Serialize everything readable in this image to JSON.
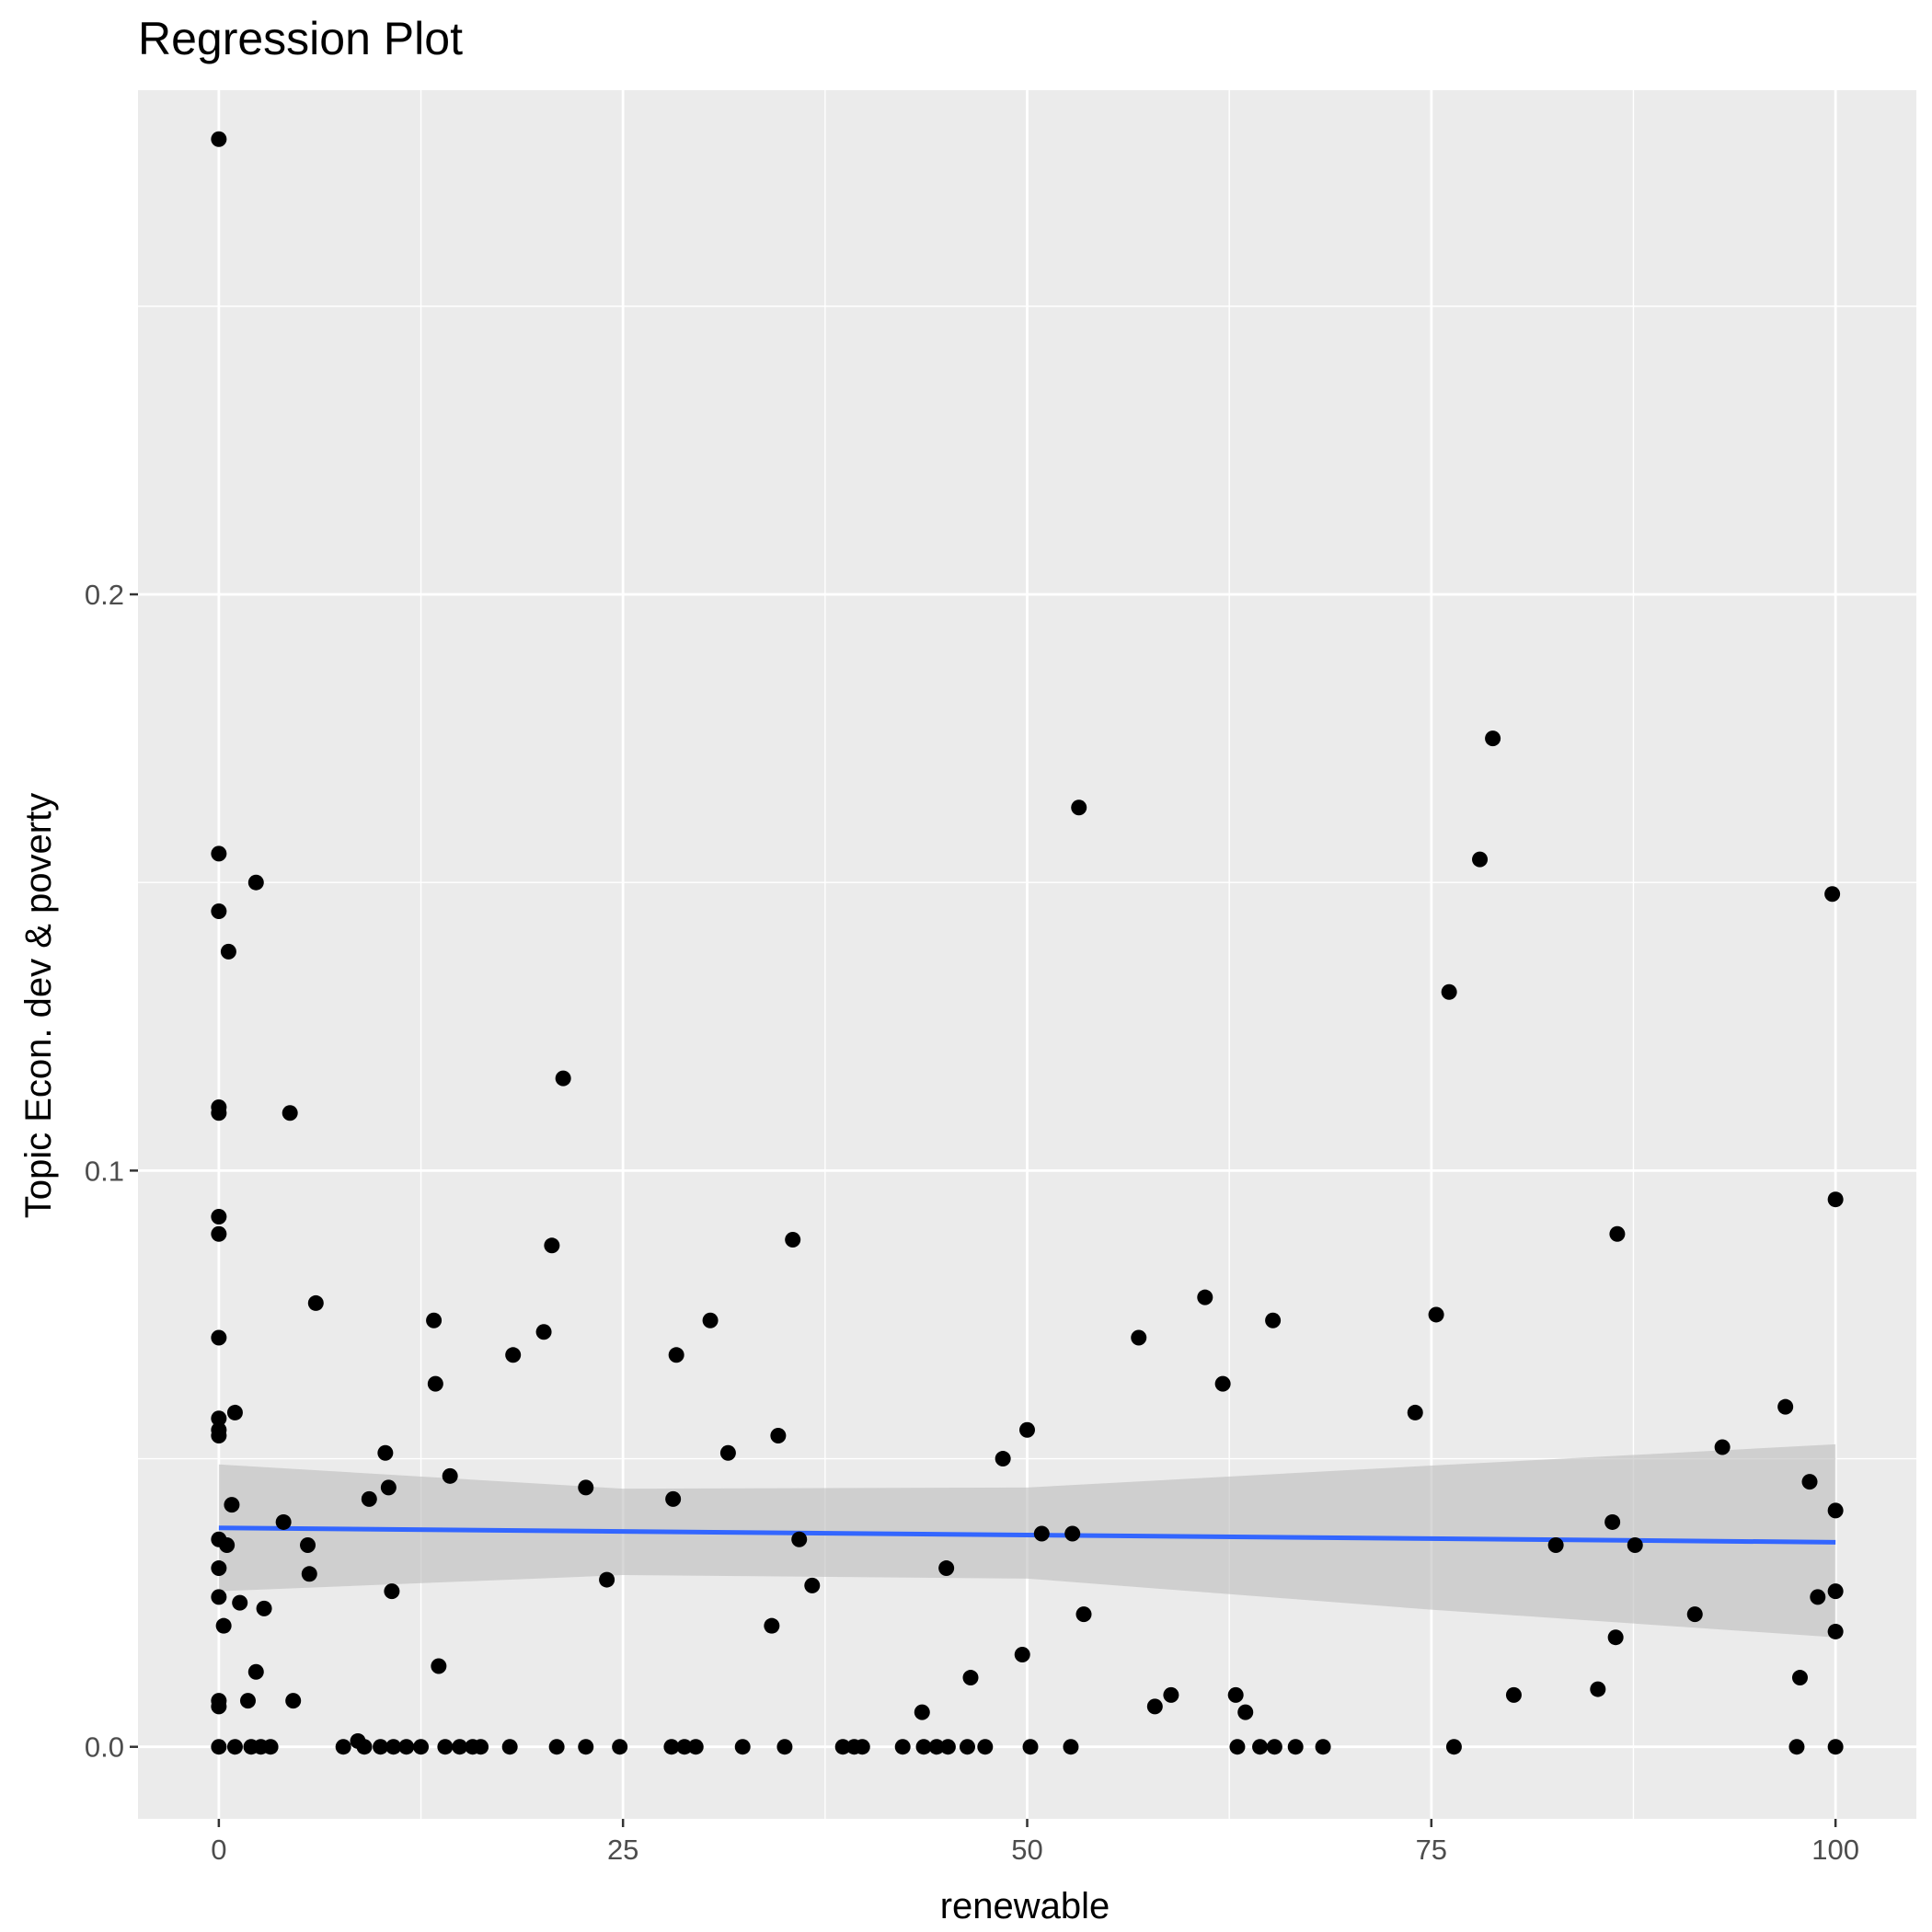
{
  "chart_data": {
    "type": "scatter",
    "title": "Regression Plot",
    "xlabel": "renewable",
    "ylabel": "Topic Econ. dev & poverty",
    "xlim": [
      -5,
      105
    ],
    "ylim": [
      -0.0125,
      0.2875
    ],
    "x_ticks": [
      0,
      25,
      50,
      75,
      100
    ],
    "x_tick_labels": [
      "0",
      "25",
      "50",
      "75",
      "100"
    ],
    "y_ticks": [
      0.0,
      0.1,
      0.2
    ],
    "y_tick_labels": [
      "0.0",
      "0.1",
      "0.2"
    ],
    "grid": true,
    "legend": "none",
    "colors": {
      "panel_background": "#ebebeb",
      "grid": "#ffffff",
      "points": "#000000",
      "regression_line": "#3366ff",
      "confidence_band": "#bdbdbd"
    },
    "regression": {
      "x": [
        0,
        100
      ],
      "y": [
        0.038,
        0.0355
      ]
    },
    "confidence_band": {
      "x": [
        0,
        25,
        50,
        75,
        100
      ],
      "upper": [
        0.049,
        0.0448,
        0.045,
        0.0488,
        0.0525
      ],
      "lower": [
        0.027,
        0.0298,
        0.0292,
        0.0238,
        0.019
      ]
    },
    "points": [
      [
        0.0,
        0.279
      ],
      [
        0.0,
        0.155
      ],
      [
        0.0,
        0.145
      ],
      [
        0.0,
        0.111
      ],
      [
        0.0,
        0.11
      ],
      [
        0.0,
        0.092
      ],
      [
        0.0,
        0.089
      ],
      [
        0.0,
        0.071
      ],
      [
        0.0,
        0.057
      ],
      [
        0.0,
        0.055
      ],
      [
        0.0,
        0.054
      ],
      [
        0.0,
        0.036
      ],
      [
        0.0,
        0.031
      ],
      [
        0.0,
        0.026
      ],
      [
        0.0,
        0.007
      ],
      [
        0.0,
        0.008
      ],
      [
        0.0,
        0.0
      ],
      [
        0.5,
        0.035
      ],
      [
        0.3,
        0.021
      ],
      [
        0.6,
        0.138
      ],
      [
        0.8,
        0.042
      ],
      [
        1.0,
        0.058
      ],
      [
        1.3,
        0.025
      ],
      [
        1.8,
        0.008
      ],
      [
        2.3,
        0.15
      ],
      [
        2.3,
        0.013
      ],
      [
        2.8,
        0.024
      ],
      [
        4.0,
        0.039
      ],
      [
        4.4,
        0.11
      ],
      [
        4.6,
        0.008
      ],
      [
        5.5,
        0.035
      ],
      [
        5.6,
        0.03
      ],
      [
        6.0,
        0.077
      ],
      [
        9.3,
        0.043
      ],
      [
        10.3,
        0.051
      ],
      [
        10.5,
        0.045
      ],
      [
        10.7,
        0.027
      ],
      [
        13.3,
        0.074
      ],
      [
        13.4,
        0.063
      ],
      [
        13.6,
        0.014
      ],
      [
        14.3,
        0.047
      ],
      [
        18.2,
        0.068
      ],
      [
        20.1,
        0.072
      ],
      [
        20.6,
        0.087
      ],
      [
        21.3,
        0.116
      ],
      [
        22.7,
        0.045
      ],
      [
        24.0,
        0.029
      ],
      [
        28.1,
        0.043
      ],
      [
        28.3,
        0.068
      ],
      [
        30.4,
        0.074
      ],
      [
        31.5,
        0.051
      ],
      [
        34.2,
        0.021
      ],
      [
        34.6,
        0.054
      ],
      [
        35.5,
        0.088
      ],
      [
        35.9,
        0.036
      ],
      [
        36.7,
        0.028
      ],
      [
        48.5,
        0.05
      ],
      [
        49.7,
        0.016
      ],
      [
        50.0,
        0.055
      ],
      [
        50.9,
        0.037
      ],
      [
        52.8,
        0.037
      ],
      [
        53.2,
        0.163
      ],
      [
        53.5,
        0.023
      ],
      [
        45.0,
        0.031
      ],
      [
        46.5,
        0.012
      ],
      [
        43.5,
        0.006
      ],
      [
        56.9,
        0.071
      ],
      [
        57.9,
        0.007
      ],
      [
        58.9,
        0.009
      ],
      [
        61.0,
        0.078
      ],
      [
        62.1,
        0.063
      ],
      [
        62.9,
        0.009
      ],
      [
        63.5,
        0.006
      ],
      [
        65.2,
        0.074
      ],
      [
        74.0,
        0.058
      ],
      [
        75.3,
        0.075
      ],
      [
        76.1,
        0.131
      ],
      [
        78.0,
        0.154
      ],
      [
        78.8,
        0.175
      ],
      [
        80.1,
        0.009
      ],
      [
        82.7,
        0.035
      ],
      [
        85.3,
        0.01
      ],
      [
        86.2,
        0.039
      ],
      [
        86.4,
        0.019
      ],
      [
        86.5,
        0.089
      ],
      [
        87.6,
        0.035
      ],
      [
        91.3,
        0.023
      ],
      [
        93.0,
        0.052
      ],
      [
        96.9,
        0.059
      ],
      [
        97.8,
        0.012
      ],
      [
        98.4,
        0.046
      ],
      [
        98.9,
        0.026
      ],
      [
        99.8,
        0.148
      ],
      [
        100.0,
        0.095
      ],
      [
        100.0,
        0.041
      ],
      [
        100.0,
        0.027
      ],
      [
        100.0,
        0.02
      ],
      [
        1.0,
        0.0
      ],
      [
        2.0,
        0.0
      ],
      [
        2.6,
        0.0
      ],
      [
        3.2,
        0.0
      ],
      [
        7.7,
        0.0
      ],
      [
        8.6,
        0.001
      ],
      [
        9.0,
        0.0
      ],
      [
        10.0,
        0.0
      ],
      [
        10.8,
        0.0
      ],
      [
        11.6,
        0.0
      ],
      [
        12.5,
        0.0
      ],
      [
        14.0,
        0.0
      ],
      [
        14.9,
        0.0
      ],
      [
        15.7,
        0.0
      ],
      [
        16.2,
        0.0
      ],
      [
        18.0,
        0.0
      ],
      [
        20.9,
        0.0
      ],
      [
        22.7,
        0.0
      ],
      [
        24.8,
        0.0
      ],
      [
        28.0,
        0.0
      ],
      [
        28.8,
        0.0
      ],
      [
        29.5,
        0.0
      ],
      [
        32.4,
        0.0
      ],
      [
        35.0,
        0.0
      ],
      [
        38.6,
        0.0
      ],
      [
        39.3,
        0.0
      ],
      [
        39.8,
        0.0
      ],
      [
        42.3,
        0.0
      ],
      [
        43.6,
        0.0
      ],
      [
        44.4,
        0.0
      ],
      [
        45.1,
        0.0
      ],
      [
        46.3,
        0.0
      ],
      [
        47.4,
        0.0
      ],
      [
        50.2,
        0.0
      ],
      [
        52.7,
        0.0
      ],
      [
        63.0,
        0.0
      ],
      [
        64.4,
        0.0
      ],
      [
        65.3,
        0.0
      ],
      [
        66.6,
        0.0
      ],
      [
        68.3,
        0.0
      ],
      [
        76.4,
        0.0
      ],
      [
        97.6,
        0.0
      ],
      [
        100.0,
        0.0
      ]
    ]
  }
}
